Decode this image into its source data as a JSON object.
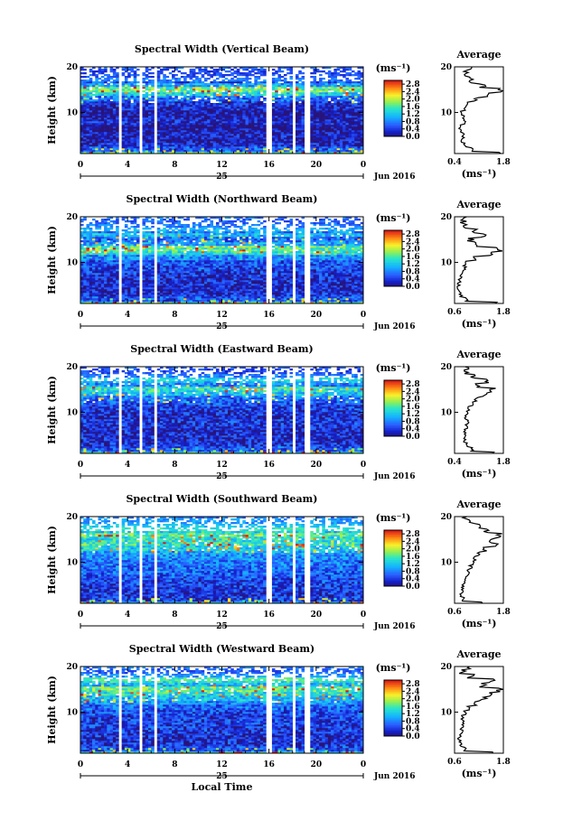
{
  "chart_data": [
    {
      "type": "heatmap",
      "title": "Spectral Width (Vertical Beam)",
      "ylabel": "Height (km)",
      "xlim": [
        0,
        24
      ],
      "ylim": [
        1,
        20
      ],
      "x_ticks": [
        "0",
        "4",
        "8",
        "12",
        "16",
        "20",
        "0"
      ],
      "y_ticks": [
        "10",
        "20"
      ],
      "date_label": "25",
      "month_label": "Jun 2016",
      "colorbar": {
        "unit": "(ms⁻¹)",
        "ticks": [
          "0.0",
          "0.4",
          "0.8",
          "1.2",
          "1.6",
          "2.0",
          "2.4",
          "2.8"
        ],
        "range": [
          0,
          3.0
        ]
      },
      "gaps": [
        [
          3.2,
          3.6
        ],
        [
          4.9,
          5.2
        ],
        [
          6.3,
          6.6
        ],
        [
          15.8,
          16.2
        ],
        [
          18.0,
          18.2
        ],
        [
          19.1,
          19.4
        ]
      ],
      "profile": {
        "title": "Average",
        "xlim": [
          0.4,
          1.8
        ],
        "x_ticks": [
          "0.4",
          "1.8"
        ],
        "xlabel": "(ms⁻¹)",
        "y_ticks": [
          "10",
          "20"
        ],
        "heights": [
          1,
          2,
          3,
          4,
          5,
          6,
          7,
          8,
          9,
          10,
          11,
          12,
          13,
          14,
          15,
          16,
          17,
          18,
          19,
          20
        ],
        "values": [
          1.7,
          0.9,
          0.7,
          0.6,
          0.65,
          0.6,
          0.55,
          0.7,
          0.65,
          0.6,
          0.7,
          0.75,
          1.0,
          1.4,
          1.7,
          1.2,
          0.9,
          0.75,
          0.7,
          0.8
        ]
      }
    },
    {
      "type": "heatmap",
      "title": "Spectral Width (Northward Beam)",
      "ylabel": "Height (km)",
      "xlim": [
        0,
        24
      ],
      "ylim": [
        1,
        20
      ],
      "x_ticks": [
        "0",
        "4",
        "8",
        "12",
        "16",
        "20",
        "0"
      ],
      "y_ticks": [
        "10",
        "20"
      ],
      "date_label": "25",
      "month_label": "Jun 2016",
      "colorbar": {
        "unit": "(ms⁻¹)",
        "ticks": [
          "0.0",
          "0.4",
          "0.8",
          "1.2",
          "1.6",
          "2.0",
          "2.4",
          "2.8"
        ],
        "range": [
          0,
          3.0
        ]
      },
      "gaps": [
        [
          3.2,
          3.6
        ],
        [
          4.9,
          5.2
        ],
        [
          6.3,
          6.6
        ],
        [
          15.8,
          16.2
        ],
        [
          18.0,
          18.2
        ],
        [
          19.1,
          19.4
        ]
      ],
      "profile": {
        "title": "Average",
        "xlim": [
          0.6,
          1.8
        ],
        "x_ticks": [
          "0.6",
          "1.8"
        ],
        "xlabel": "(ms⁻¹)",
        "y_ticks": [
          "10",
          "20"
        ],
        "heights": [
          1,
          2,
          3,
          4,
          5,
          6,
          7,
          8,
          9,
          10,
          11,
          12,
          13,
          14,
          15,
          16,
          17,
          18,
          19,
          20
        ],
        "values": [
          1.6,
          0.9,
          0.75,
          0.7,
          0.7,
          0.72,
          0.75,
          0.8,
          0.85,
          0.9,
          1.1,
          1.5,
          1.7,
          1.2,
          1.0,
          1.3,
          1.1,
          0.9,
          0.8,
          0.9
        ]
      }
    },
    {
      "type": "heatmap",
      "title": "Spectral Width (Eastward Beam)",
      "ylabel": "Height (km)",
      "xlim": [
        0,
        24
      ],
      "ylim": [
        1,
        20
      ],
      "x_ticks": [
        "0",
        "4",
        "8",
        "12",
        "16",
        "20",
        "0"
      ],
      "y_ticks": [
        "10",
        "20"
      ],
      "date_label": "25",
      "month_label": "Jun 2016",
      "colorbar": {
        "unit": "(ms⁻¹)",
        "ticks": [
          "0.0",
          "0.4",
          "0.8",
          "1.2",
          "1.6",
          "2.0",
          "2.4",
          "2.8"
        ],
        "range": [
          0,
          3.0
        ]
      },
      "gaps": [
        [
          3.2,
          3.6
        ],
        [
          4.9,
          5.2
        ],
        [
          6.3,
          6.6
        ],
        [
          15.8,
          16.2
        ],
        [
          18.0,
          18.2
        ],
        [
          19.1,
          19.4
        ]
      ],
      "profile": {
        "title": "Average",
        "xlim": [
          0.4,
          1.8
        ],
        "x_ticks": [
          "0.4",
          "1.8"
        ],
        "xlabel": "(ms⁻¹)",
        "y_ticks": [
          "10",
          "20"
        ],
        "heights": [
          1,
          2,
          3,
          4,
          5,
          6,
          7,
          8,
          9,
          10,
          11,
          12,
          13,
          14,
          15,
          16,
          17,
          18,
          19,
          20
        ],
        "values": [
          1.5,
          0.9,
          0.75,
          0.7,
          0.72,
          0.7,
          0.75,
          0.8,
          0.7,
          0.75,
          0.8,
          0.9,
          1.0,
          1.3,
          1.5,
          1.1,
          1.3,
          0.9,
          0.7,
          0.8
        ]
      }
    },
    {
      "type": "heatmap",
      "title": "Spectral Width (Southward Beam)",
      "ylabel": "Height (km)",
      "xlim": [
        0,
        24
      ],
      "ylim": [
        1,
        20
      ],
      "x_ticks": [
        "0",
        "4",
        "8",
        "12",
        "16",
        "20",
        "0"
      ],
      "y_ticks": [
        "10",
        "20"
      ],
      "date_label": "25",
      "month_label": "Jun 2016",
      "colorbar": {
        "unit": "(ms⁻¹)",
        "ticks": [
          "0.0",
          "0.4",
          "0.8",
          "1.2",
          "1.6",
          "2.0",
          "2.4",
          "2.8"
        ],
        "range": [
          0,
          3.0
        ]
      },
      "gaps": [
        [
          3.2,
          3.6
        ],
        [
          4.9,
          5.2
        ],
        [
          6.3,
          6.6
        ],
        [
          15.8,
          16.2
        ],
        [
          18.0,
          18.2
        ],
        [
          19.1,
          19.4
        ]
      ],
      "profile": {
        "title": "Average",
        "xlim": [
          0.6,
          1.8
        ],
        "x_ticks": [
          "0.6",
          "1.8"
        ],
        "xlabel": "(ms⁻¹)",
        "y_ticks": [
          "10",
          "20"
        ],
        "heights": [
          1,
          2,
          3,
          4,
          5,
          6,
          7,
          8,
          9,
          10,
          11,
          12,
          13,
          14,
          15,
          16,
          17,
          18,
          19,
          20
        ],
        "values": [
          1.3,
          0.8,
          0.75,
          0.78,
          0.8,
          0.85,
          0.9,
          0.95,
          1.0,
          1.05,
          1.1,
          1.2,
          1.4,
          1.6,
          1.5,
          1.7,
          1.4,
          1.2,
          1.0,
          0.9
        ]
      }
    },
    {
      "type": "heatmap",
      "title": "Spectral Width (Westward Beam)",
      "ylabel": "Height (km)",
      "xlabel": "Local Time",
      "xlim": [
        0,
        24
      ],
      "ylim": [
        1,
        20
      ],
      "x_ticks": [
        "0",
        "4",
        "8",
        "12",
        "16",
        "20",
        "0"
      ],
      "y_ticks": [
        "10",
        "20"
      ],
      "date_label": "25",
      "month_label": "Jun 2016",
      "colorbar": {
        "unit": "(ms⁻¹)",
        "ticks": [
          "0.0",
          "0.4",
          "0.8",
          "1.2",
          "1.6",
          "2.0",
          "2.4",
          "2.8"
        ],
        "range": [
          0,
          3.0
        ]
      },
      "gaps": [
        [
          3.2,
          3.6
        ],
        [
          4.9,
          5.2
        ],
        [
          6.3,
          6.6
        ],
        [
          15.8,
          16.2
        ],
        [
          18.0,
          18.2
        ],
        [
          19.1,
          19.4
        ]
      ],
      "profile": {
        "title": "Average",
        "xlim": [
          0.6,
          1.8
        ],
        "x_ticks": [
          "0.6",
          "1.8"
        ],
        "xlabel": "(ms⁻¹)",
        "y_ticks": [
          "10",
          "20"
        ],
        "heights": [
          1,
          2,
          3,
          4,
          5,
          6,
          7,
          8,
          9,
          10,
          11,
          12,
          13,
          14,
          15,
          16,
          17,
          18,
          19,
          20
        ],
        "values": [
          1.5,
          0.85,
          0.75,
          0.72,
          0.75,
          0.78,
          0.8,
          0.82,
          0.8,
          0.85,
          0.95,
          1.1,
          1.3,
          1.5,
          1.7,
          1.3,
          1.5,
          1.0,
          0.8,
          0.9
        ]
      }
    }
  ]
}
